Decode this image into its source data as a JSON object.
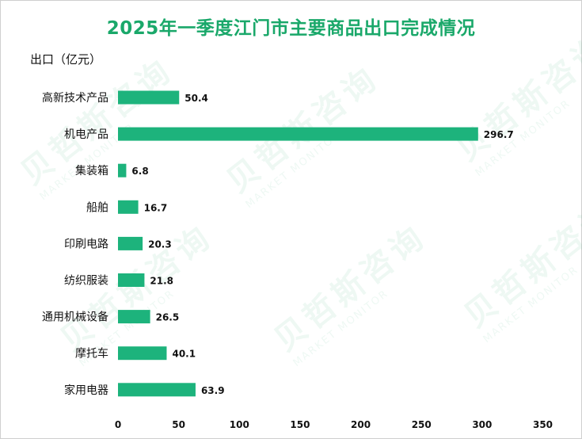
{
  "title": "2025年一季度江门市主要商品出口完成情况",
  "watermark": {
    "brand": "贝哲斯咨询",
    "sub": "MARKET MONITOR"
  },
  "colors": {
    "bar": "#1db37c",
    "title": "#1aa86a"
  },
  "chart_data": {
    "type": "bar",
    "orientation": "horizontal",
    "title": "2025年一季度江门市主要商品出口完成情况",
    "ylabel": "出口（亿元）",
    "xlabel": "",
    "categories": [
      "高新技术产品",
      "机电产品",
      "集装箱",
      "船舶",
      "印刷电路",
      "纺织服装",
      "通用机械设备",
      "摩托车",
      "家用电器"
    ],
    "values": [
      50.4,
      296.7,
      6.8,
      16.7,
      20.3,
      21.8,
      26.5,
      40.1,
      63.9
    ],
    "value_labels": [
      "50.4",
      "296.7",
      "6.8",
      "16.7",
      "20.3",
      "21.8",
      "26.5",
      "40.1",
      "63.9"
    ],
    "xlim": [
      0,
      350
    ],
    "ticks": [
      0,
      50,
      100,
      150,
      200,
      250,
      300,
      350
    ],
    "grid": false
  }
}
